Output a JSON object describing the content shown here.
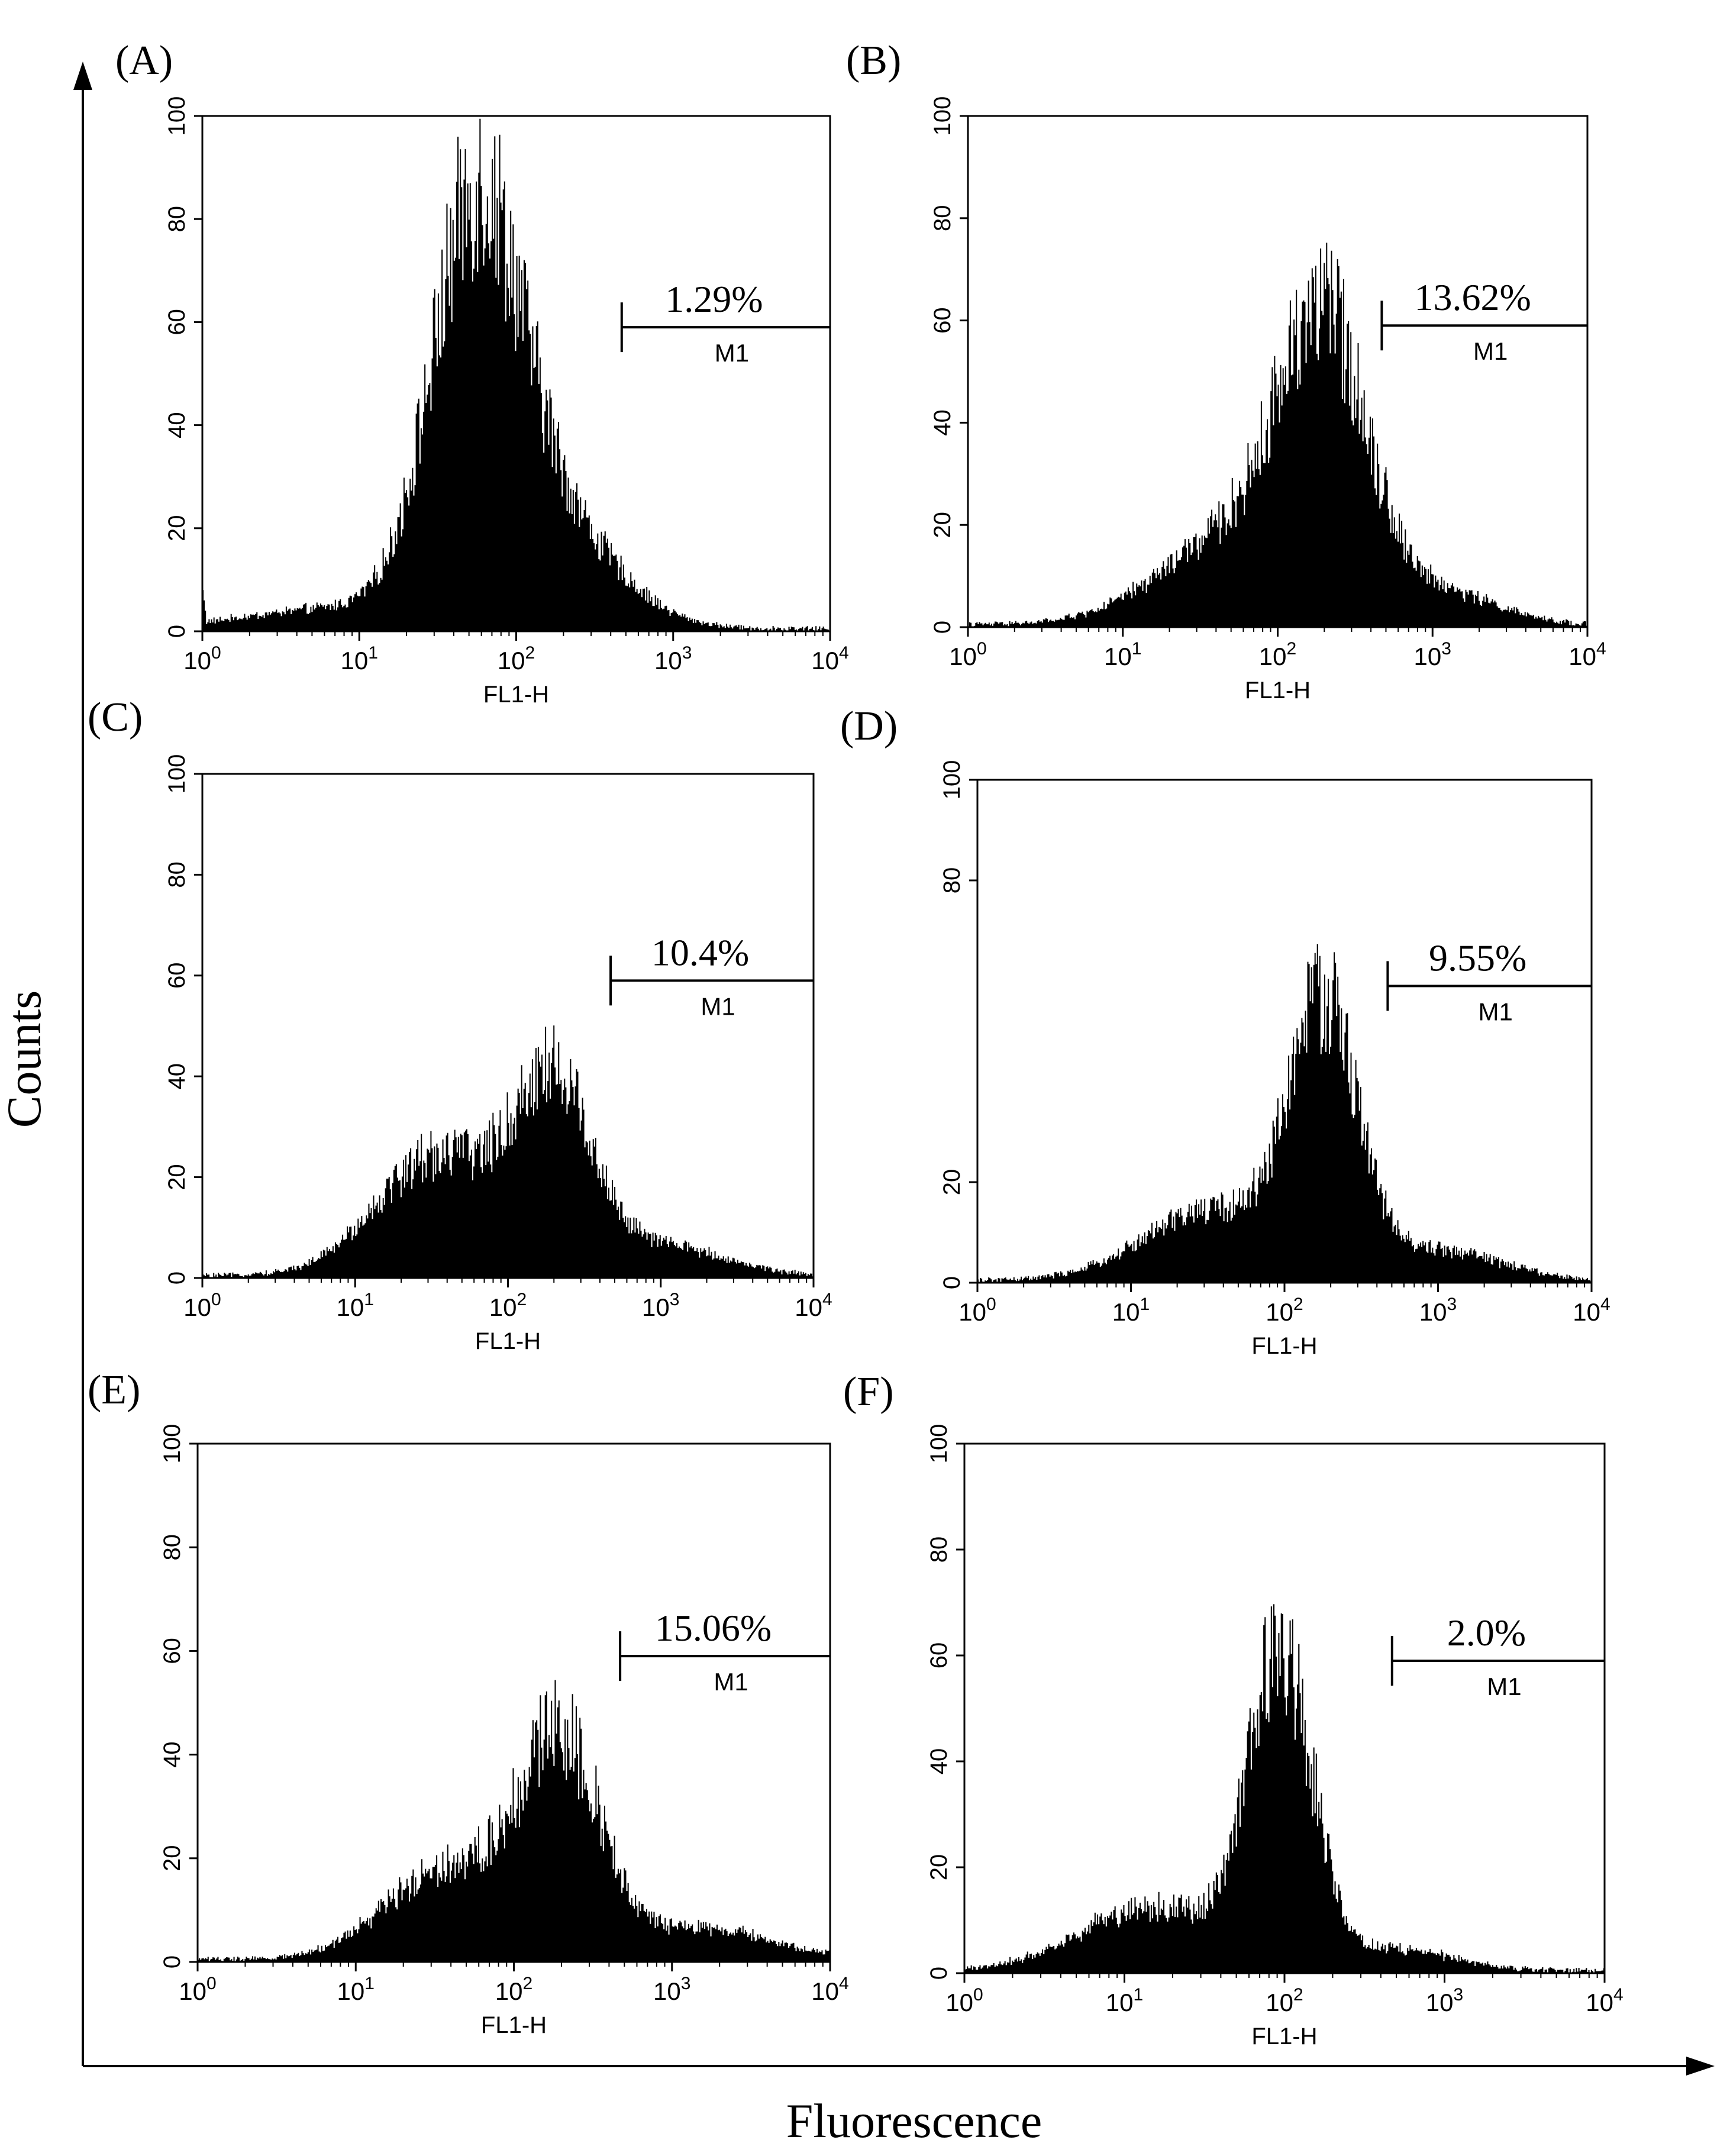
{
  "figure": {
    "global_xlabel": "Fluorescence",
    "global_ylabel": "Counts"
  },
  "chart_data": [
    {
      "type": "histogram",
      "panel_label": "(A)",
      "xlabel": "FL1-H",
      "xscale": "log",
      "xlim": [
        1,
        10000
      ],
      "ylim": [
        0,
        100
      ],
      "yticks": [
        "0",
        "20",
        "40",
        "60",
        "80",
        "100"
      ],
      "marker": {
        "name": "M1",
        "start": 470,
        "end": 10000,
        "percent": "1.29%"
      },
      "peaks": [
        {
          "center": 55,
          "height": 72,
          "width": 0.28
        },
        {
          "center": 150,
          "height": 22,
          "width": 0.42
        },
        {
          "center": 8,
          "height": 4,
          "width": 0.6
        }
      ]
    },
    {
      "type": "histogram",
      "panel_label": "(B)",
      "xlabel": "FL1-H",
      "xscale": "log",
      "xlim": [
        1,
        10000
      ],
      "ylim": [
        0,
        100
      ],
      "yticks": [
        "0",
        "20",
        "40",
        "60",
        "80",
        "100"
      ],
      "marker": {
        "name": "M1",
        "start": 470,
        "end": 10000,
        "percent": "13.62%"
      },
      "peaks": [
        {
          "center": 200,
          "height": 52,
          "width": 0.28
        },
        {
          "center": 60,
          "height": 18,
          "width": 0.5
        },
        {
          "center": 1200,
          "height": 6,
          "width": 0.35
        }
      ]
    },
    {
      "type": "histogram",
      "panel_label": "(C)",
      "xlabel": "FL1-H",
      "xscale": "log",
      "xlim": [
        1,
        10000
      ],
      "ylim": [
        0,
        100
      ],
      "yticks": [
        "0",
        "20",
        "40",
        "60",
        "80",
        "100"
      ],
      "marker": {
        "name": "M1",
        "start": 470,
        "end": 10000,
        "percent": "10.4%"
      },
      "peaks": [
        {
          "center": 200,
          "height": 36,
          "width": 0.25
        },
        {
          "center": 35,
          "height": 24,
          "width": 0.4
        },
        {
          "center": 1000,
          "height": 6,
          "width": 0.4
        }
      ]
    },
    {
      "type": "histogram",
      "panel_label": "(D)",
      "xlabel": "FL1-H",
      "xscale": "log",
      "xlim": [
        1,
        10000
      ],
      "ylim": [
        0,
        100
      ],
      "yticks": [
        "0",
        "20",
        "80",
        "100"
      ],
      "marker": {
        "name": "M1",
        "start": 470,
        "end": 10000,
        "percent": "9.55%"
      },
      "peaks": [
        {
          "center": 180,
          "height": 52,
          "width": 0.22
        },
        {
          "center": 35,
          "height": 14,
          "width": 0.45
        },
        {
          "center": 1000,
          "height": 6,
          "width": 0.4
        }
      ]
    },
    {
      "type": "histogram",
      "panel_label": "(E)",
      "xlabel": "FL1-H",
      "xscale": "log",
      "xlim": [
        1,
        10000
      ],
      "ylim": [
        0,
        100
      ],
      "yticks": [
        "0",
        "20",
        "40",
        "60",
        "80",
        "100"
      ],
      "marker": {
        "name": "M1",
        "start": 470,
        "end": 10000,
        "percent": "15.06%"
      },
      "peaks": [
        {
          "center": 200,
          "height": 40,
          "width": 0.25
        },
        {
          "center": 40,
          "height": 18,
          "width": 0.4
        },
        {
          "center": 1500,
          "height": 6,
          "width": 0.45
        }
      ]
    },
    {
      "type": "histogram",
      "panel_label": "(F)",
      "xlabel": "FL1-H",
      "xscale": "log",
      "xlim": [
        1,
        10000
      ],
      "ylim": [
        0,
        100
      ],
      "yticks": [
        "0",
        "20",
        "40",
        "60",
        "80",
        "100"
      ],
      "marker": {
        "name": "M1",
        "start": 470,
        "end": 10000,
        "percent": "2.0%"
      },
      "peaks": [
        {
          "center": 95,
          "height": 58,
          "width": 0.2
        },
        {
          "center": 15,
          "height": 12,
          "width": 0.45
        },
        {
          "center": 500,
          "height": 4,
          "width": 0.35
        }
      ]
    }
  ]
}
